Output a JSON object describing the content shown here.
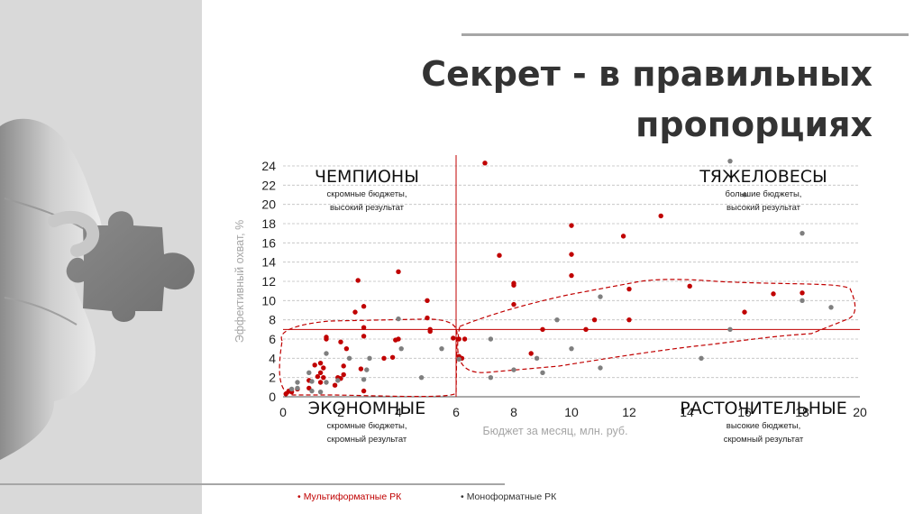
{
  "slide": {
    "title_lines": [
      "Секрет - в правильных",
      "пропорциях"
    ]
  },
  "legend": [
    {
      "label": "Мультиформатные РК",
      "color": "#c00000"
    },
    {
      "label": "Моноформатные РК",
      "color": "#7f7f7f"
    }
  ],
  "chart_data": {
    "type": "scatter",
    "xlabel": "Бюджет за месяц, млн. руб.",
    "ylabel": "Эффективный охват, %",
    "xlim": [
      0,
      20
    ],
    "ylim": [
      0,
      24
    ],
    "xticks": [
      0,
      2,
      4,
      6,
      8,
      10,
      12,
      14,
      16,
      18,
      20
    ],
    "yticks": [
      0,
      2,
      4,
      6,
      8,
      10,
      12,
      14,
      16,
      18,
      20,
      22,
      24
    ],
    "grid": "horizontal dashed",
    "reference_lines": {
      "x": 6,
      "y": 7
    },
    "quadrants": [
      {
        "name": "ЧЕМПИОНЫ",
        "desc": [
          "скромные бюджеты,",
          "высокий результат"
        ]
      },
      {
        "name": "ТЯЖЕЛОВЕСЫ",
        "desc": [
          "большие бюджеты,",
          "высокий результат"
        ]
      },
      {
        "name": "ЭКОНОМНЫЕ",
        "desc": [
          "скромные бюджеты,",
          "скромный результат"
        ]
      },
      {
        "name": "РАСТОЧИТЕЛЬНЫЕ",
        "desc": [
          "высокие бюджеты,",
          "скромный результат"
        ]
      }
    ],
    "series": [
      {
        "name": "Мультиформатные РК",
        "color": "#c00000",
        "points": [
          [
            0.1,
            0.3
          ],
          [
            0.2,
            0.6
          ],
          [
            0.3,
            0.5
          ],
          [
            0.5,
            0.8
          ],
          [
            0.9,
            0.9
          ],
          [
            0.9,
            1.7
          ],
          [
            1.2,
            2.1
          ],
          [
            1.1,
            3.3
          ],
          [
            1.3,
            3.5
          ],
          [
            1.4,
            3.0
          ],
          [
            1.3,
            2.5
          ],
          [
            1.4,
            2.0
          ],
          [
            1.3,
            1.5
          ],
          [
            1.5,
            6.2
          ],
          [
            1.5,
            6.0
          ],
          [
            1.8,
            1.2
          ],
          [
            1.9,
            2.0
          ],
          [
            2.0,
            1.9
          ],
          [
            2.0,
            5.7
          ],
          [
            2.1,
            3.2
          ],
          [
            2.1,
            2.3
          ],
          [
            2.2,
            5.0
          ],
          [
            2.5,
            8.8
          ],
          [
            2.8,
            9.4
          ],
          [
            2.8,
            7.2
          ],
          [
            2.8,
            6.3
          ],
          [
            2.7,
            2.9
          ],
          [
            2.8,
            0.6
          ],
          [
            2.6,
            12.1
          ],
          [
            3.5,
            4.0
          ],
          [
            3.8,
            4.1
          ],
          [
            3.9,
            5.9
          ],
          [
            4.0,
            13.0
          ],
          [
            4.0,
            6.0
          ],
          [
            5.0,
            10.0
          ],
          [
            5.0,
            8.2
          ],
          [
            5.1,
            7.0
          ],
          [
            5.1,
            6.8
          ],
          [
            5.9,
            6.1
          ],
          [
            6.1,
            6.0
          ],
          [
            6.1,
            4.2
          ],
          [
            6.2,
            4.0
          ],
          [
            6.3,
            6.0
          ],
          [
            7.0,
            24.3
          ],
          [
            7.5,
            14.7
          ],
          [
            8.0,
            11.8
          ],
          [
            8.0,
            11.6
          ],
          [
            8.0,
            9.6
          ],
          [
            8.6,
            4.5
          ],
          [
            9.0,
            7.0
          ],
          [
            10.0,
            17.8
          ],
          [
            10.0,
            14.8
          ],
          [
            10.0,
            12.6
          ],
          [
            10.5,
            7.0
          ],
          [
            10.8,
            8.0
          ],
          [
            11.8,
            16.7
          ],
          [
            12.0,
            11.2
          ],
          [
            12.0,
            8.0
          ],
          [
            13.1,
            18.8
          ],
          [
            14.1,
            11.5
          ],
          [
            16.0,
            8.8
          ],
          [
            17.0,
            10.7
          ],
          [
            18.0,
            10.8
          ]
        ]
      },
      {
        "name": "Моноформатные РК",
        "color": "#7f7f7f",
        "points": [
          [
            0.3,
            0.8
          ],
          [
            0.5,
            1.5
          ],
          [
            0.5,
            0.9
          ],
          [
            0.9,
            2.5
          ],
          [
            1.0,
            1.6
          ],
          [
            1.0,
            0.6
          ],
          [
            1.3,
            0.5
          ],
          [
            1.5,
            4.5
          ],
          [
            1.5,
            1.5
          ],
          [
            1.9,
            1.7
          ],
          [
            2.3,
            4.0
          ],
          [
            2.8,
            1.8
          ],
          [
            2.9,
            2.8
          ],
          [
            3.0,
            4.0
          ],
          [
            4.0,
            8.1
          ],
          [
            4.1,
            5.0
          ],
          [
            4.8,
            2.0
          ],
          [
            5.5,
            5.0
          ],
          [
            6.1,
            3.9
          ],
          [
            7.2,
            6.0
          ],
          [
            7.2,
            2.0
          ],
          [
            8.0,
            2.8
          ],
          [
            8.8,
            4.0
          ],
          [
            9.0,
            2.5
          ],
          [
            9.5,
            8.0
          ],
          [
            10.0,
            5.0
          ],
          [
            11.0,
            3.0
          ],
          [
            11.0,
            10.4
          ],
          [
            14.5,
            4.0
          ],
          [
            15.5,
            24.5
          ],
          [
            15.5,
            7.0
          ],
          [
            16.0,
            21.0
          ],
          [
            18.0,
            17.0
          ],
          [
            18.0,
            10.0
          ],
          [
            19.0,
            9.3
          ]
        ]
      }
    ]
  }
}
